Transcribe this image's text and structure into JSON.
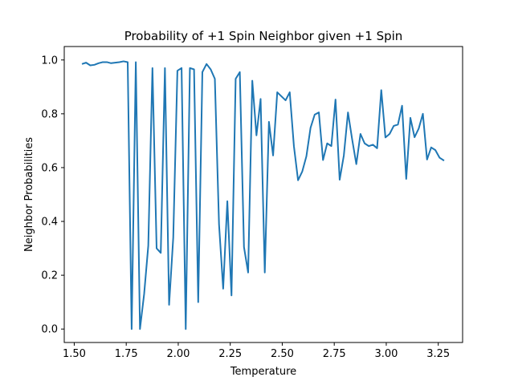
{
  "chart_data": {
    "type": "line",
    "title": "Probability of +1 Spin Neighbor given +1 Spin",
    "xlabel": "Temperature",
    "ylabel": "Neighbor Probabilities",
    "xlim": [
      1.452,
      3.367
    ],
    "ylim": [
      -0.05,
      1.05
    ],
    "xticks": [
      1.5,
      1.75,
      2.0,
      2.25,
      2.5,
      2.75,
      3.0,
      3.25
    ],
    "xtick_labels": [
      "1.50",
      "1.75",
      "2.00",
      "2.25",
      "2.50",
      "2.75",
      "3.00",
      "3.25"
    ],
    "yticks": [
      0.0,
      0.2,
      0.4,
      0.6,
      0.8,
      1.0
    ],
    "ytick_labels": [
      "0.0",
      "0.2",
      "0.4",
      "0.6",
      "0.8",
      "1.0"
    ],
    "grid": false,
    "legend": false,
    "series": [
      {
        "color": "#1f77b4",
        "x": [
          1.537,
          1.557,
          1.577,
          1.597,
          1.617,
          1.637,
          1.657,
          1.677,
          1.697,
          1.717,
          1.737,
          1.757,
          1.776,
          1.796,
          1.816,
          1.836,
          1.856,
          1.876,
          1.896,
          1.916,
          1.936,
          1.956,
          1.976,
          1.996,
          2.016,
          2.036,
          2.056,
          2.076,
          2.096,
          2.116,
          2.136,
          2.156,
          2.176,
          2.196,
          2.216,
          2.236,
          2.256,
          2.276,
          2.296,
          2.316,
          2.336,
          2.356,
          2.376,
          2.396,
          2.416,
          2.436,
          2.456,
          2.476,
          2.496,
          2.516,
          2.536,
          2.556,
          2.576,
          2.596,
          2.616,
          2.636,
          2.656,
          2.676,
          2.696,
          2.716,
          2.736,
          2.756,
          2.776,
          2.796,
          2.816,
          2.836,
          2.856,
          2.876,
          2.896,
          2.916,
          2.936,
          2.956,
          2.976,
          2.996,
          3.016,
          3.036,
          3.056,
          3.076,
          3.096,
          3.116,
          3.136,
          3.156,
          3.176,
          3.196,
          3.216,
          3.236,
          3.256,
          3.278
        ],
        "y": [
          0.985,
          0.99,
          0.98,
          0.982,
          0.988,
          0.992,
          0.992,
          0.988,
          0.99,
          0.992,
          0.995,
          0.992,
          0.0,
          0.992,
          0.0,
          0.13,
          0.31,
          0.97,
          0.3,
          0.283,
          0.97,
          0.09,
          0.34,
          0.96,
          0.97,
          0.0,
          0.97,
          0.965,
          0.1,
          0.955,
          0.985,
          0.965,
          0.93,
          0.39,
          0.15,
          0.475,
          0.125,
          0.93,
          0.955,
          0.305,
          0.21,
          0.923,
          0.72,
          0.855,
          0.21,
          0.77,
          0.645,
          0.88,
          0.865,
          0.85,
          0.88,
          0.68,
          0.553,
          0.585,
          0.642,
          0.748,
          0.797,
          0.805,
          0.628,
          0.69,
          0.68,
          0.853,
          0.555,
          0.645,
          0.805,
          0.705,
          0.613,
          0.725,
          0.69,
          0.68,
          0.685,
          0.672,
          0.888,
          0.712,
          0.725,
          0.755,
          0.76,
          0.83,
          0.558,
          0.785,
          0.713,
          0.745,
          0.8,
          0.63,
          0.675,
          0.665,
          0.637,
          0.626
        ]
      }
    ]
  }
}
